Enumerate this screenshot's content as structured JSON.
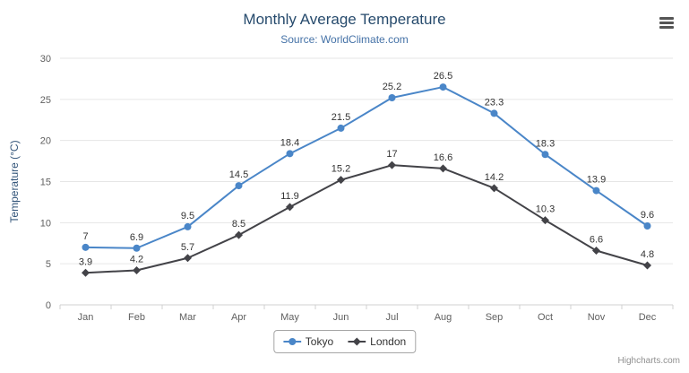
{
  "header": {
    "title": "Monthly Average Temperature",
    "subtitle": "Source: WorldClimate.com"
  },
  "toolbar": {
    "context_menu_icon": "hamburger-icon"
  },
  "credits": "Highcharts.com",
  "chart_data": {
    "type": "line",
    "title": "Monthly Average Temperature",
    "subtitle": "Source: WorldClimate.com",
    "categories": [
      "Jan",
      "Feb",
      "Mar",
      "Apr",
      "May",
      "Jun",
      "Jul",
      "Aug",
      "Sep",
      "Oct",
      "Nov",
      "Dec"
    ],
    "series": [
      {
        "name": "Tokyo",
        "color": "#4a86c8",
        "marker": "circle",
        "values": [
          7,
          6.9,
          9.5,
          14.5,
          18.4,
          21.5,
          25.2,
          26.5,
          23.3,
          18.3,
          13.9,
          9.6
        ]
      },
      {
        "name": "London",
        "color": "#434348",
        "marker": "diamond",
        "values": [
          3.9,
          4.2,
          5.7,
          8.5,
          11.9,
          15.2,
          17,
          16.6,
          14.2,
          10.3,
          6.6,
          4.8
        ]
      }
    ],
    "xlabel": "",
    "ylabel": "Temperature (°C)",
    "ylim": [
      0,
      30
    ],
    "ytick_step": 5,
    "yticks": [
      0,
      5,
      10,
      15,
      20,
      25,
      30
    ],
    "grid": true,
    "data_labels": true,
    "legend_position": "bottom",
    "grid_color": "#e6e6e6",
    "axis_line_color": "#d0d0d0"
  }
}
